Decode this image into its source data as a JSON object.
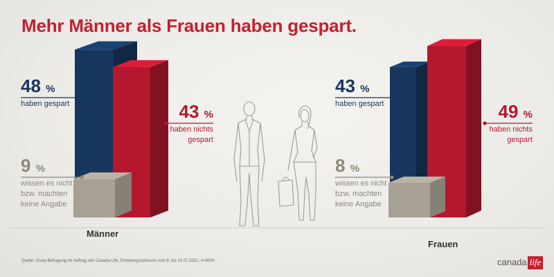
{
  "title": "Mehr Männer als Frauen haben gespart.",
  "source": "Quelle: Civey-Befragung im Auftrag von Canada Life; Erhebungszeitraum vom 8. bis 10.07.2021; n=5000",
  "logo": {
    "text": "canada",
    "accent": "life"
  },
  "colors": {
    "saved": "#17365d",
    "not_saved": "#b5182e",
    "no_answer": "#a6a194",
    "title": "#c4202f",
    "figure_stroke": "#9a9a9a"
  },
  "icons": [
    "man-figure-icon",
    "woman-figure-icon"
  ],
  "chart_data": {
    "type": "bar",
    "title": "Mehr Männer als Frauen haben gespart.",
    "categories": [
      "Männer",
      "Frauen"
    ],
    "unit": "%",
    "series": [
      {
        "name": "haben gespart",
        "values": [
          48,
          43
        ]
      },
      {
        "name": "haben nichts gespart",
        "values": [
          43,
          49
        ]
      },
      {
        "name": "wissen es nicht bzw. machten keine Angabe",
        "values": [
          9,
          8
        ]
      }
    ],
    "labels": {
      "saved": [
        "haben gespart"
      ],
      "not_saved": [
        "haben nichts",
        "gespart"
      ],
      "no_answer": [
        "wissen es nicht",
        "bzw. machten",
        "keine Angabe"
      ]
    },
    "grid": false
  }
}
